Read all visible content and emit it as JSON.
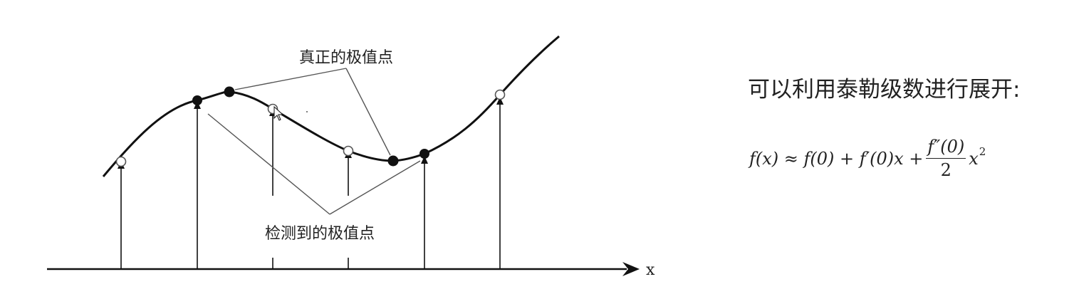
{
  "diagram": {
    "true_extrema_label": "真正的极值点",
    "detected_extrema_label": "检测到的极值点",
    "x_axis_label": "x"
  },
  "text": {
    "heading": "可以利用泰勒级数进行展开:",
    "formula": {
      "lhs": "f(x) ≈ f(0) + f′(0)x +",
      "numerator": "f″(0)",
      "denominator": "2",
      "tail": "x",
      "exponent": "2"
    }
  }
}
